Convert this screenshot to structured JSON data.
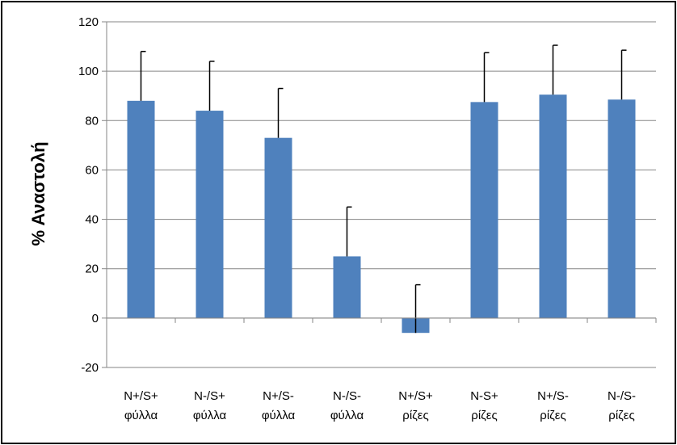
{
  "chart_data": {
    "type": "bar",
    "title": "",
    "xlabel": "",
    "ylabel": "% Αναστολή",
    "ylim": [
      -20,
      120
    ],
    "yticks": [
      -20,
      0,
      20,
      40,
      60,
      80,
      100,
      120
    ],
    "grid": true,
    "legend": "none",
    "categories": [
      [
        "N+/S+",
        "φύλλα"
      ],
      [
        "N-/S+",
        "φύλλα"
      ],
      [
        "N+/S-",
        "φύλλα"
      ],
      [
        "N-/S-",
        "φύλλα"
      ],
      [
        "N+/S+",
        "ρίζες"
      ],
      [
        "N-S+",
        "ρίζες"
      ],
      [
        "N+/S-",
        "ρίζες"
      ],
      [
        "N-/S-",
        "ρίζες"
      ]
    ],
    "values": [
      88,
      84,
      73,
      25,
      -6,
      87.5,
      90.5,
      88.5
    ],
    "error_upper": [
      20,
      20,
      20,
      20,
      19.5,
      20,
      20,
      20
    ],
    "bar_color": "#4F81BD"
  }
}
